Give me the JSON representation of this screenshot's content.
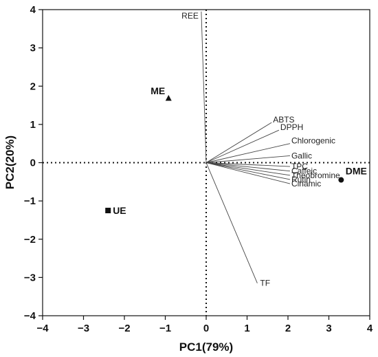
{
  "chart_data": {
    "type": "scatter",
    "subtype": "pca-biplot",
    "title": "",
    "xlabel": "PC1(79%)",
    "ylabel": "PC2(20%)",
    "xlim": [
      -4,
      4
    ],
    "ylim": [
      -4,
      4
    ],
    "xticks": [
      "−4",
      "−3",
      "−2",
      "−1",
      "0",
      "1",
      "2",
      "3",
      "4"
    ],
    "yticks": [
      "4",
      "3",
      "2",
      "1",
      "0",
      "−1",
      "−2",
      "−3",
      "−4"
    ],
    "grid": false,
    "zero_lines": "dotted",
    "scores": [
      {
        "name": "ME",
        "x": -0.92,
        "y": 1.68,
        "marker": "triangle"
      },
      {
        "name": "UE",
        "x": -2.4,
        "y": -1.25,
        "marker": "square"
      },
      {
        "name": "DME",
        "x": 3.3,
        "y": -0.45,
        "marker": "circle"
      }
    ],
    "loadings": [
      {
        "name": "REE",
        "x": -0.12,
        "y": 3.95
      },
      {
        "name": "ABTS",
        "x": 1.6,
        "y": 1.05
      },
      {
        "name": "DPPH",
        "x": 1.78,
        "y": 0.85
      },
      {
        "name": "Chlorogenic",
        "x": 2.05,
        "y": 0.5
      },
      {
        "name": "Gallic",
        "x": 2.05,
        "y": 0.18
      },
      {
        "name": "TPC",
        "x": 2.05,
        "y": -0.1
      },
      {
        "name": "Caffeic",
        "x": 2.05,
        "y": -0.22
      },
      {
        "name": "Theobromine",
        "x": 2.05,
        "y": -0.33
      },
      {
        "name": "Rutin",
        "x": 2.05,
        "y": -0.44
      },
      {
        "name": "Cinamic",
        "x": 2.05,
        "y": -0.55
      },
      {
        "name": "TF",
        "x": 1.25,
        "y": -3.15
      }
    ]
  }
}
